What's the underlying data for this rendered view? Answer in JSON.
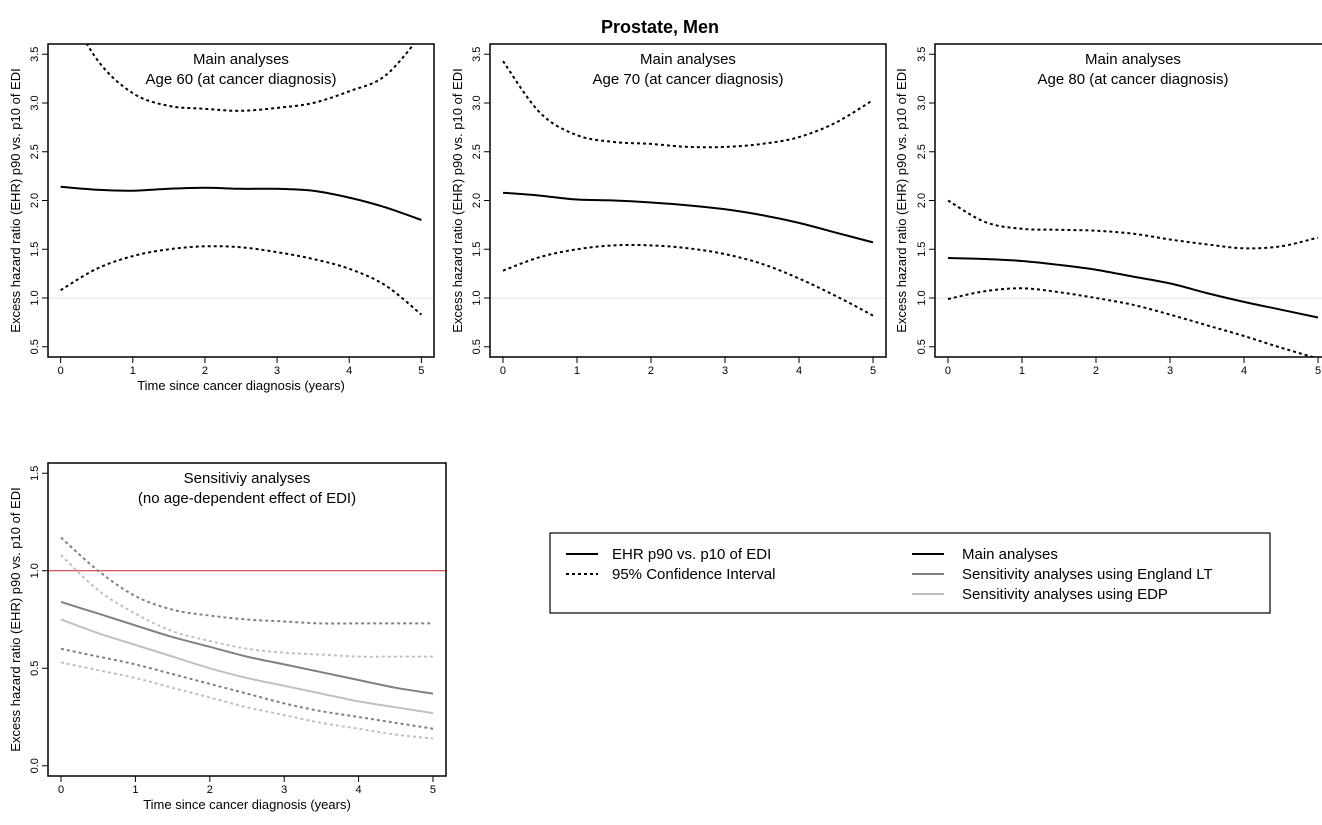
{
  "figure": {
    "title": "Prostate, Men"
  },
  "colors": {
    "main": "#000000",
    "england_lt": "#808080",
    "edp": "#c0c0c0",
    "reference_line_panels": "#e2e2e2",
    "reference_line_sensitivity": "#cc2222"
  },
  "legend": {
    "items_left": [
      {
        "label": "EHR p90 vs. p10 of EDI",
        "style": "solid",
        "color": "#000000"
      },
      {
        "label": "95% Confidence Interval",
        "style": "dotted",
        "color": "#000000"
      }
    ],
    "items_right": [
      {
        "label": "Main analyses",
        "style": "solid",
        "color": "#000000"
      },
      {
        "label": "Sensitivity analyses using England LT",
        "style": "solid",
        "color": "#808080"
      },
      {
        "label": "Sensitivity analyses using EDP",
        "style": "solid",
        "color": "#c0c0c0"
      }
    ]
  },
  "chart_data": [
    {
      "type": "line",
      "title": "Main analyses",
      "subtitle": "Age 60 (at cancer diagnosis)",
      "xlabel": "Time since cancer diagnosis (years)",
      "ylabel": "Excess hazard ratio (EHR) p90 vs. p10 of EDI",
      "xlim": [
        0,
        5
      ],
      "ylim": [
        0.5,
        3.5
      ],
      "xticks": [
        "0",
        "1",
        "2",
        "3",
        "4",
        "5"
      ],
      "yticks": [
        "0.5",
        "1.0",
        "1.5",
        "2.0",
        "2.5",
        "3.0",
        "3.5"
      ],
      "reference_y": 1.0,
      "x": [
        0,
        0.5,
        1,
        1.5,
        2,
        2.5,
        3,
        3.5,
        4,
        4.5,
        5
      ],
      "series": [
        {
          "role": "estimate",
          "color_key": "main",
          "style": "solid",
          "values": [
            2.14,
            2.11,
            2.1,
            2.12,
            2.13,
            2.12,
            2.12,
            2.1,
            2.03,
            1.93,
            1.8
          ]
        },
        {
          "role": "ci_upper",
          "color_key": "main",
          "style": "dotted",
          "values": [
            4.1,
            3.45,
            3.1,
            2.97,
            2.94,
            2.92,
            2.95,
            3.0,
            3.12,
            3.28,
            3.7
          ]
        },
        {
          "role": "ci_lower",
          "color_key": "main",
          "style": "dotted",
          "values": [
            1.08,
            1.3,
            1.43,
            1.5,
            1.53,
            1.52,
            1.47,
            1.4,
            1.3,
            1.13,
            0.83
          ]
        }
      ]
    },
    {
      "type": "line",
      "title": "Main analyses",
      "subtitle": "Age 70 (at cancer diagnosis)",
      "xlabel": "",
      "ylabel": "Excess hazard ratio (EHR) p90 vs. p10 of EDI",
      "xlim": [
        0,
        5
      ],
      "ylim": [
        0.5,
        3.5
      ],
      "xticks": [
        "0",
        "1",
        "2",
        "3",
        "4",
        "5"
      ],
      "yticks": [
        "0.5",
        "1.0",
        "1.5",
        "2.0",
        "2.5",
        "3.0",
        "3.5"
      ],
      "reference_y": 1.0,
      "x": [
        0,
        0.5,
        1,
        1.5,
        2,
        2.5,
        3,
        3.5,
        4,
        4.5,
        5
      ],
      "series": [
        {
          "role": "estimate",
          "color_key": "main",
          "style": "solid",
          "values": [
            2.08,
            2.05,
            2.01,
            2.0,
            1.98,
            1.95,
            1.91,
            1.85,
            1.77,
            1.67,
            1.57
          ]
        },
        {
          "role": "ci_upper",
          "color_key": "main",
          "style": "dotted",
          "values": [
            3.43,
            2.9,
            2.67,
            2.6,
            2.58,
            2.55,
            2.55,
            2.58,
            2.65,
            2.8,
            3.03
          ]
        },
        {
          "role": "ci_lower",
          "color_key": "main",
          "style": "dotted",
          "values": [
            1.28,
            1.42,
            1.5,
            1.54,
            1.54,
            1.51,
            1.45,
            1.35,
            1.2,
            1.02,
            0.82
          ]
        }
      ]
    },
    {
      "type": "line",
      "title": "Main analyses",
      "subtitle": "Age 80 (at cancer diagnosis)",
      "xlabel": "",
      "ylabel": "Excess hazard ratio (EHR) p90 vs. p10 of EDI",
      "xlim": [
        0,
        5
      ],
      "ylim": [
        0.5,
        3.5
      ],
      "xticks": [
        "0",
        "1",
        "2",
        "3",
        "4",
        "5"
      ],
      "yticks": [
        "0.5",
        "1.0",
        "1.5",
        "2.0",
        "2.5",
        "3.0",
        "3.5"
      ],
      "reference_y": 1.0,
      "x": [
        0,
        0.5,
        1,
        1.5,
        2,
        2.5,
        3,
        3.5,
        4,
        4.5,
        5
      ],
      "series": [
        {
          "role": "estimate",
          "color_key": "main",
          "style": "solid",
          "values": [
            1.41,
            1.4,
            1.38,
            1.34,
            1.29,
            1.22,
            1.15,
            1.05,
            0.96,
            0.88,
            0.8
          ]
        },
        {
          "role": "ci_upper",
          "color_key": "main",
          "style": "dotted",
          "values": [
            2.0,
            1.78,
            1.71,
            1.7,
            1.69,
            1.66,
            1.6,
            1.55,
            1.51,
            1.53,
            1.62
          ]
        },
        {
          "role": "ci_lower",
          "color_key": "main",
          "style": "dotted",
          "values": [
            0.99,
            1.07,
            1.1,
            1.06,
            1.0,
            0.93,
            0.83,
            0.72,
            0.61,
            0.49,
            0.38
          ]
        }
      ]
    },
    {
      "type": "line",
      "title": "Sensitiviy analyses",
      "subtitle": "(no age-dependent effect of EDI)",
      "xlabel": "Time since cancer diagnosis (years)",
      "ylabel": "Excess hazard ratio (EHR) p90 vs. p10 of EDI",
      "xlim": [
        0,
        5
      ],
      "ylim": [
        0.0,
        1.5
      ],
      "xticks": [
        "0",
        "1",
        "2",
        "3",
        "4",
        "5"
      ],
      "yticks": [
        "0.0",
        "0.5",
        "1.0",
        "1.5"
      ],
      "reference_y": 1.0,
      "x": [
        0,
        0.5,
        1,
        1.5,
        2,
        2.5,
        3,
        3.5,
        4,
        4.5,
        5
      ],
      "series": [
        {
          "role": "ci_upper",
          "color_key": "england_lt",
          "style": "dotted",
          "values": [
            1.17,
            1.0,
            0.87,
            0.8,
            0.77,
            0.75,
            0.74,
            0.73,
            0.73,
            0.73,
            0.73
          ]
        },
        {
          "role": "estimate",
          "color_key": "england_lt",
          "style": "solid",
          "values": [
            0.84,
            0.78,
            0.72,
            0.66,
            0.61,
            0.56,
            0.52,
            0.48,
            0.44,
            0.4,
            0.37
          ]
        },
        {
          "role": "ci_lower",
          "color_key": "england_lt",
          "style": "dotted",
          "values": [
            0.6,
            0.56,
            0.52,
            0.47,
            0.42,
            0.37,
            0.32,
            0.28,
            0.25,
            0.22,
            0.19
          ]
        },
        {
          "role": "ci_upper",
          "color_key": "edp",
          "style": "dotted",
          "values": [
            1.08,
            0.9,
            0.78,
            0.69,
            0.64,
            0.6,
            0.58,
            0.57,
            0.56,
            0.56,
            0.56
          ]
        },
        {
          "role": "estimate",
          "color_key": "edp",
          "style": "solid",
          "values": [
            0.75,
            0.68,
            0.62,
            0.56,
            0.5,
            0.45,
            0.41,
            0.37,
            0.33,
            0.3,
            0.27
          ]
        },
        {
          "role": "ci_lower",
          "color_key": "edp",
          "style": "dotted",
          "values": [
            0.53,
            0.49,
            0.45,
            0.4,
            0.35,
            0.3,
            0.26,
            0.22,
            0.19,
            0.16,
            0.14
          ]
        }
      ]
    }
  ]
}
